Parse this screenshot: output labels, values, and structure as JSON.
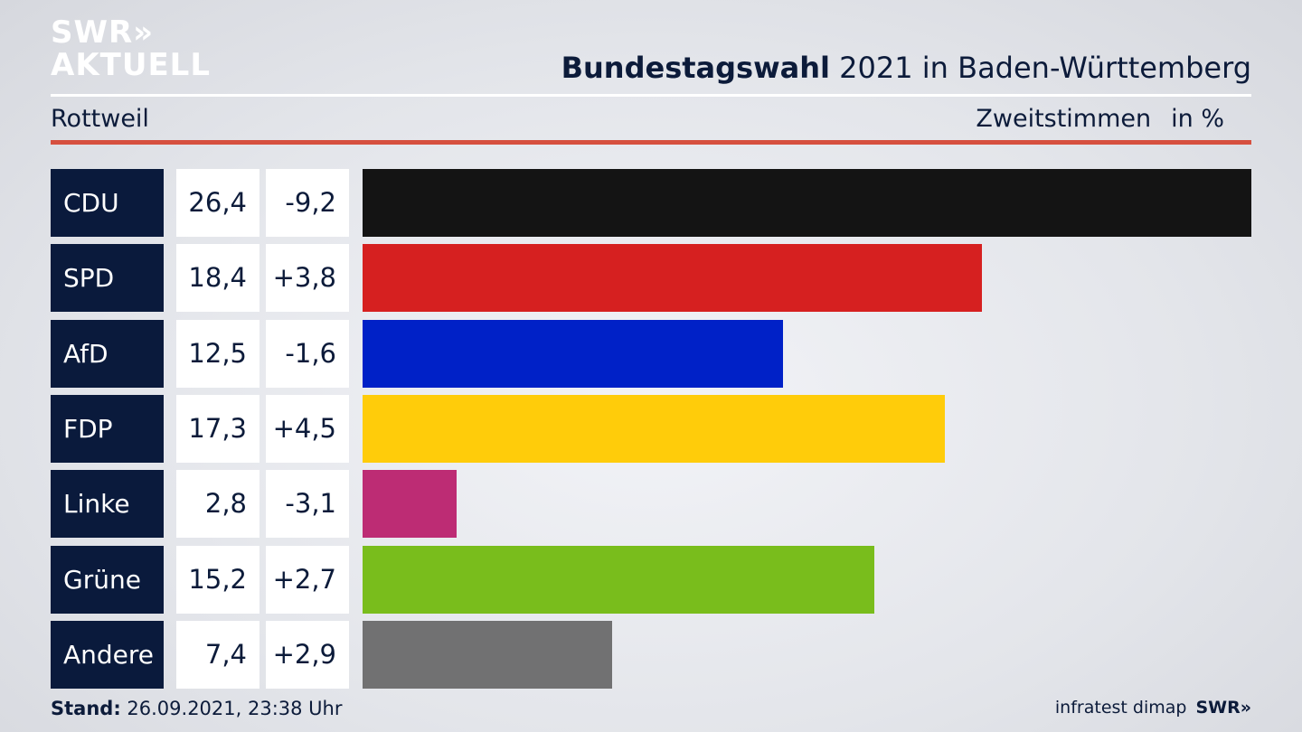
{
  "brand": {
    "logo_line1": "SWR»",
    "logo_line2": "AKTUELL"
  },
  "header": {
    "title_bold": "Bundestagswahl",
    "title_rest": " 2021 in Baden-Württemberg",
    "region": "Rottweil",
    "metric": "Zweitstimmen",
    "unit": "in %"
  },
  "colors": {
    "accent_rule": "#d6503f",
    "party_label_bg": "#0a1a3c"
  },
  "chart_data": {
    "type": "bar",
    "orientation": "horizontal",
    "categories": [
      "CDU",
      "SPD",
      "AfD",
      "FDP",
      "Linke",
      "Grüne",
      "Andere"
    ],
    "values": [
      26.4,
      18.4,
      12.5,
      17.3,
      2.8,
      15.2,
      7.4
    ],
    "value_labels": [
      "26,4",
      "18,4",
      "12,5",
      "17,3",
      "2,8",
      "15,2",
      "7,4"
    ],
    "changes": [
      -9.2,
      3.8,
      -1.6,
      4.5,
      -3.1,
      2.7,
      2.9
    ],
    "change_labels": [
      "-9,2",
      "+3,8",
      "-1,6",
      "+4,5",
      "-3,1",
      "+2,7",
      "+2,9"
    ],
    "colors": [
      "#141414",
      "#d62020",
      "#0021c7",
      "#ffcc0a",
      "#bd2c74",
      "#79bd1c",
      "#717172"
    ],
    "xlim": [
      0,
      26.4
    ]
  },
  "footer": {
    "stand_label": "Stand:",
    "stand_value": " 26.09.2021, 23:38 Uhr",
    "source": "infratest dimap",
    "brand": "SWR»"
  }
}
